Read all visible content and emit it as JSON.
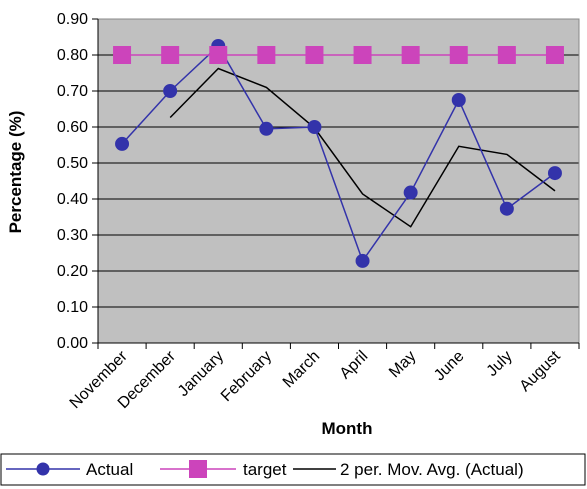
{
  "chart_data": {
    "type": "line",
    "title": "",
    "xlabel": "Month",
    "ylabel": "Percentage (%)",
    "ylim": [
      0,
      0.9
    ],
    "yticks": [
      "0.00",
      "0.10",
      "0.20",
      "0.30",
      "0.40",
      "0.50",
      "0.60",
      "0.70",
      "0.80",
      "0.90"
    ],
    "categories": [
      "November",
      "December",
      "January",
      "February",
      "March",
      "April",
      "May",
      "June",
      "July",
      "August"
    ],
    "grid": "horizontal",
    "plot_background": "#c0c0c0",
    "legend_position": "bottom",
    "series": [
      {
        "name": "Actual",
        "color": "#3333aa",
        "marker": "circle",
        "values": [
          0.553,
          0.7,
          0.825,
          0.595,
          0.6,
          0.228,
          0.418,
          0.675,
          0.373,
          0.472
        ]
      },
      {
        "name": "target",
        "color": "#cc44bb",
        "marker": "square",
        "values": [
          0.8,
          0.8,
          0.8,
          0.8,
          0.8,
          0.8,
          0.8,
          0.8,
          0.8,
          0.8
        ]
      },
      {
        "name": "2 per. Mov. Avg. (Actual)",
        "color": "#000000",
        "marker": "none",
        "values": [
          null,
          0.6265,
          0.7625,
          0.71,
          0.5975,
          0.414,
          0.323,
          0.5465,
          0.524,
          0.4225
        ]
      }
    ]
  }
}
